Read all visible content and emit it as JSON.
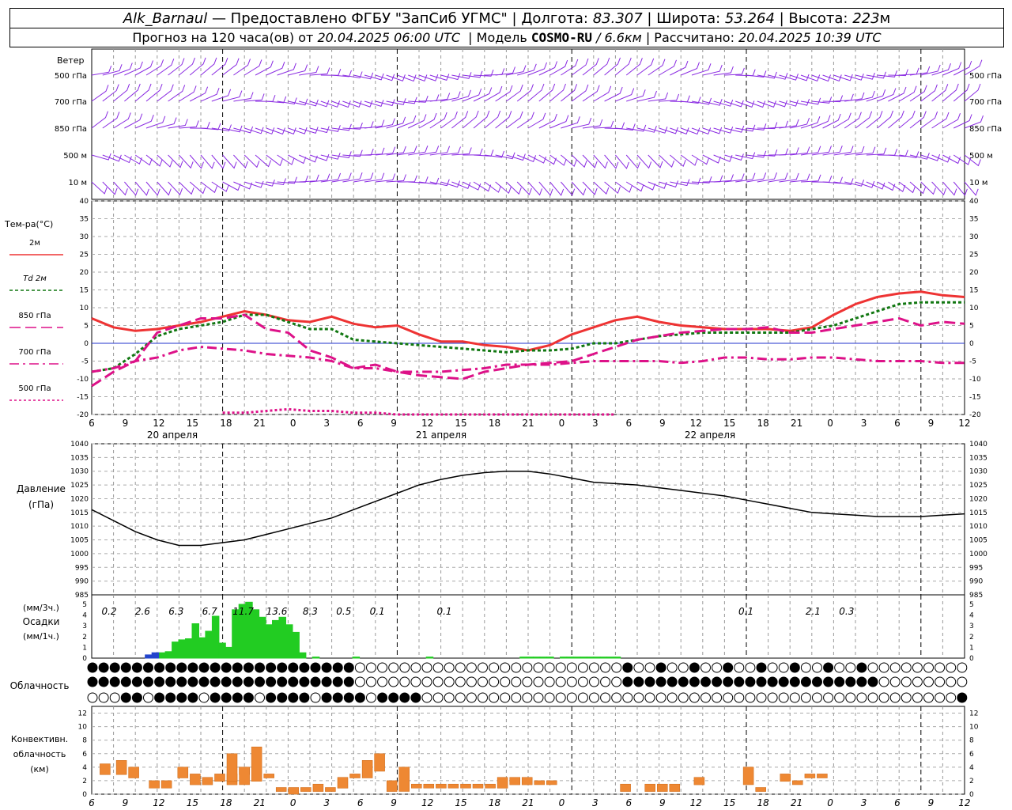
{
  "header": {
    "station": "Alk_Barnaul",
    "provided_by": "— Предоставлено ФГБУ \"ЗапСиб УГМС\" |",
    "lon_label": "Долгота:",
    "lon_value": "83.307",
    "lat_label": "| Широта:",
    "lat_value": "53.264",
    "alt_label": "| Высота:",
    "alt_value": "223",
    "alt_unit": "м",
    "forecast_label": "Прогноз на 120 часа(ов) от",
    "forecast_time": "20.04.2025 06:00 UTC",
    "model_label": "| Модель",
    "model_name": "COSMO-RU",
    "model_res": "/ 6.6км",
    "calc_label": "| Рассчитано:",
    "calc_time": "20.04.2025 10:39 UTC"
  },
  "wind_panel": {
    "title": "Ветер",
    "levels": [
      "500 гПа",
      "700 гПа",
      "850 гПа",
      "500 м",
      "10 м"
    ],
    "color": "#8a2be2"
  },
  "temp_panel": {
    "title": "Тем-ра(°C)",
    "legend": [
      {
        "label": "2м",
        "color": "#ee3333",
        "dash": ""
      },
      {
        "label": "Td  2м",
        "color": "#117711",
        "dash": "4,3"
      },
      {
        "label": "850 гПа",
        "color": "#dd1188",
        "dash": "14,6"
      },
      {
        "label": "700 гПа",
        "color": "#dd1188",
        "dash": "12,5,3,5"
      },
      {
        "label": "500 гПа",
        "color": "#dd1188",
        "dash": "3,3"
      }
    ]
  },
  "time_axis": {
    "hour_labels": [
      "6",
      "9",
      "12",
      "15",
      "18",
      "21",
      "0",
      "3",
      "6",
      "9",
      "12",
      "15",
      "18",
      "21",
      "0",
      "3",
      "6",
      "9",
      "12",
      "15",
      "18",
      "21",
      "0",
      "3",
      "6",
      "9",
      "12"
    ],
    "day_labels": [
      "20 апреля",
      "21 апреля",
      "22 апреля"
    ]
  },
  "pressure_panel": {
    "title_1": "Давление",
    "title_2": "(гПа)"
  },
  "precip_panel": {
    "title_1": "(мм/3ч.)",
    "title_2": "Осадки",
    "title_3": "(мм/1ч.)",
    "totals_3h": [
      "0.2",
      "2.6",
      "6.3",
      "6.7",
      "11.7",
      "13.6",
      "8.3",
      "0.5",
      "0.1",
      "",
      "0.1",
      "",
      "",
      "",
      "",
      "",
      "",
      "",
      "",
      "0.1",
      "",
      "2.1",
      "0.3"
    ]
  },
  "cloud_panel": {
    "title": "Облачность"
  },
  "conv_panel": {
    "title_1": "Конвективн.",
    "title_2": "облачность",
    "title_3": "(км)"
  },
  "chart_data": [
    {
      "type": "line",
      "title": "Тем-ра(°C)",
      "x_unit": "hours since 20.04.2025 06:00 UTC",
      "ylim": [
        -20,
        40
      ],
      "yticks": [
        -20,
        -15,
        -10,
        -5,
        0,
        5,
        10,
        15,
        20,
        25,
        30,
        35,
        40
      ],
      "series": [
        {
          "name": "2м",
          "x": [
            0,
            3,
            6,
            9,
            12,
            15,
            18,
            21,
            24,
            27,
            30,
            33,
            36,
            39,
            42,
            45,
            48,
            51,
            54,
            57,
            60,
            63,
            66,
            69,
            72,
            75,
            78,
            81,
            84,
            87,
            90,
            93,
            96,
            99,
            102,
            105,
            108,
            111,
            114,
            117,
            120
          ],
          "values": [
            7,
            4.5,
            3.5,
            4,
            5,
            6,
            7.5,
            9,
            8,
            6.5,
            6,
            7.5,
            5.5,
            4.5,
            5,
            2.5,
            0.5,
            0.5,
            -0.5,
            -1,
            -2,
            -0.5,
            2.5,
            4.5,
            6.5,
            7.5,
            6,
            5,
            4.5,
            4,
            4,
            4,
            3.5,
            4.5,
            8,
            11,
            13,
            14,
            14.5,
            13.5,
            13
          ]
        },
        {
          "name": "Td  2м",
          "x": [
            0,
            3,
            6,
            9,
            12,
            15,
            18,
            21,
            24,
            27,
            30,
            33,
            36,
            39,
            42,
            45,
            48,
            51,
            54,
            57,
            60,
            63,
            66,
            69,
            72,
            75,
            78,
            81,
            84,
            87,
            90,
            93,
            96,
            99,
            102,
            105,
            108,
            111,
            114,
            117,
            120
          ],
          "values": [
            -8,
            -7,
            -3,
            2,
            4,
            5,
            6,
            8,
            8,
            6,
            4,
            4,
            1,
            0.5,
            0,
            -0.5,
            -1,
            -1.5,
            -2,
            -2.5,
            -2,
            -2,
            -1.5,
            0,
            0,
            1,
            2,
            2.5,
            3,
            3,
            3,
            3,
            3,
            4,
            5,
            7,
            9,
            11,
            11.5,
            11.5,
            11.5
          ]
        },
        {
          "name": "850 гПа",
          "x": [
            0,
            3,
            6,
            9,
            12,
            15,
            18,
            21,
            24,
            27,
            30,
            33,
            36,
            39,
            42,
            45,
            48,
            51,
            54,
            57,
            60,
            63,
            66,
            69,
            72,
            75,
            78,
            81,
            84,
            87,
            90,
            93,
            96,
            99,
            102,
            105,
            108,
            111,
            114,
            117,
            120
          ],
          "values": [
            -12,
            -8,
            -5,
            3,
            5,
            7,
            7,
            8,
            4,
            3,
            -2,
            -4,
            -7,
            -6,
            -8,
            -9,
            -9.5,
            -10,
            -8,
            -7,
            -6,
            -5.5,
            -5,
            -3,
            -1,
            1,
            2,
            3,
            3.5,
            4,
            4,
            4.5,
            3,
            3,
            4,
            5,
            6,
            7,
            5,
            6,
            5.5
          ]
        },
        {
          "name": "700 гПа",
          "x": [
            0,
            3,
            6,
            9,
            12,
            15,
            18,
            21,
            24,
            27,
            30,
            33,
            36,
            39,
            42,
            45,
            48,
            51,
            54,
            57,
            60,
            63,
            66,
            69,
            72,
            75,
            78,
            81,
            84,
            87,
            90,
            93,
            96,
            99,
            102,
            105,
            108,
            111,
            114,
            117,
            120
          ],
          "values": [
            -8,
            -7,
            -5,
            -4,
            -2,
            -1,
            -1.5,
            -2,
            -3,
            -3.5,
            -4,
            -5,
            -7,
            -7,
            -8,
            -8,
            -8,
            -7.5,
            -7,
            -6,
            -6,
            -6,
            -5.5,
            -5,
            -5,
            -5,
            -5,
            -5.5,
            -5,
            -4,
            -4,
            -4.5,
            -4.5,
            -4,
            -4,
            -4.5,
            -5,
            -5,
            -5,
            -5.5,
            -5.5
          ]
        },
        {
          "name": "500 гПа",
          "x": [
            18,
            21,
            24,
            27,
            30,
            33,
            36,
            39,
            42,
            45,
            48,
            51,
            54,
            57,
            60,
            63,
            66,
            69,
            72
          ],
          "values": [
            -19.5,
            -19.5,
            -19,
            -18.5,
            -19,
            -19,
            -19.5,
            -19.5,
            -20,
            -20,
            -20,
            -20,
            -20,
            -20,
            -20,
            -20,
            -20,
            -20,
            -20
          ]
        }
      ]
    },
    {
      "type": "line",
      "title": "Давление",
      "x_unit": "hours since 20.04.2025 06:00 UTC",
      "ylim": [
        985,
        1040
      ],
      "yticks": [
        985,
        990,
        995,
        1000,
        1005,
        1010,
        1015,
        1020,
        1025,
        1030,
        1035,
        1040
      ],
      "series": [
        {
          "name": "",
          "x": [
            0,
            3,
            6,
            9,
            12,
            15,
            18,
            21,
            24,
            27,
            30,
            33,
            36,
            39,
            42,
            45,
            48,
            51,
            54,
            57,
            60,
            63,
            66,
            69,
            72,
            75,
            78,
            81,
            84,
            87,
            90,
            93,
            96,
            99,
            102,
            105,
            108,
            111,
            114,
            117,
            120
          ],
          "values": [
            1016,
            1012,
            1008,
            1005,
            1003,
            1003,
            1004,
            1005,
            1007,
            1009,
            1011,
            1013,
            1016,
            1019,
            1022,
            1025,
            1027,
            1028.5,
            1029.5,
            1030,
            1030,
            1029,
            1027.5,
            1026,
            1025.5,
            1025,
            1024,
            1023,
            1022,
            1021,
            1019.5,
            1018,
            1016.5,
            1015,
            1014.5,
            1014,
            1013.5,
            1013.5,
            1013.5,
            1014,
            1014.5
          ]
        }
      ]
    },
    {
      "type": "bar",
      "title": "Осадки",
      "x_unit": "hours since 20.04.2025 06:00 UTC (hourly)",
      "ylim": [
        0,
        5
      ],
      "yticks": [
        0,
        1,
        2,
        3,
        4,
        5
      ],
      "series": [
        {
          "name": "(мм/1ч.)",
          "color": "#22cc22",
          "x": [
            10,
            11,
            12,
            13,
            14,
            15,
            16,
            17,
            18,
            19,
            20,
            21,
            22,
            23,
            24,
            25,
            26,
            27,
            28,
            29,
            30,
            31,
            33,
            39,
            50,
            64,
            65,
            66,
            67,
            68,
            70,
            71,
            72,
            73,
            74,
            75,
            76,
            77,
            78
          ],
          "values": [
            0.5,
            0.6,
            1.5,
            1.7,
            1.8,
            3.2,
            1.9,
            2.5,
            3.9,
            1.4,
            1.0,
            4.5,
            5.0,
            5.2,
            4.5,
            3.8,
            3.1,
            3.5,
            3.8,
            3.1,
            2.4,
            0.5,
            0.1,
            0.1,
            0.1,
            0.1,
            0.1,
            0.1,
            0.1,
            0.1,
            0.1,
            0.1,
            0.1,
            0.1,
            0.1,
            0.1,
            0.1,
            0.1,
            0.1
          ]
        },
        {
          "name": "",
          "color": "#2244cc",
          "x": [
            8,
            9
          ],
          "values": [
            0.3,
            0.5
          ]
        }
      ]
    },
    {
      "type": "bar",
      "title": "Конвективн. облачность",
      "x_unit": "hours since 20.04.2025 06:00 UTC (hourly)",
      "ylim": [
        0,
        13
      ],
      "yticks": [
        0,
        2,
        4,
        6,
        8,
        10,
        12
      ],
      "series": [
        {
          "name": "",
          "color": "#ee8833",
          "bars": [
            [
              2,
              3.5,
              4.5
            ],
            [
              6,
              3.5,
              5
            ],
            [
              9,
              3,
              4
            ],
            [
              14,
              1.5,
              2
            ],
            [
              17,
              1.5,
              2
            ],
            [
              21,
              3,
              4
            ],
            [
              24,
              2,
              3
            ],
            [
              27,
              2,
              2.5
            ],
            [
              30,
              2.5,
              3
            ],
            [
              33,
              2,
              3
            ],
            [
              33,
              2.5,
              6
            ],
            [
              36,
              3.5,
              4
            ],
            [
              36,
              2,
              4
            ],
            [
              39,
              2.5,
              7
            ],
            [
              42,
              3,
              3
            ],
            [
              45,
              1,
              1
            ],
            [
              48,
              0.5,
              1
            ],
            [
              51,
              1,
              1
            ],
            [
              54,
              1,
              1.5
            ],
            [
              57,
              1,
              1
            ],
            [
              60,
              1.5,
              2.5
            ],
            [
              63,
              3,
              3
            ],
            [
              66,
              3,
              5
            ],
            [
              69,
              4,
              6
            ],
            [
              72,
              1,
              2
            ],
            [
              75,
              1,
              4
            ],
            [
              78,
              1.5,
              1.5
            ],
            [
              81,
              1.5,
              1.5
            ],
            [
              84,
              1.5,
              1.5
            ],
            [
              87,
              1.5,
              1.5
            ],
            [
              90,
              1.5,
              1.5
            ],
            [
              93,
              1.5,
              1.5
            ],
            [
              96,
              1.5,
              1.5
            ],
            [
              99,
              1.5,
              2.5
            ],
            [
              102,
              2,
              2.5
            ],
            [
              105,
              2,
              2.5
            ],
            [
              108,
              2,
              2
            ],
            [
              111,
              2,
              2
            ],
            [
              129,
              1,
              1.5
            ],
            [
              135,
              1,
              1.5
            ],
            [
              138,
              1,
              1.5
            ],
            [
              141,
              1,
              1.5
            ],
            [
              147,
              2,
              2.5
            ],
            [
              150,
              0,
              0
            ],
            [
              159,
              2,
              4
            ],
            [
              162,
              1,
              1
            ],
            [
              168,
              2.5,
              3
            ],
            [
              171,
              2,
              2
            ],
            [
              174,
              3,
              3
            ],
            [
              177,
              3,
              3
            ],
            [
              213,
              0,
              0
            ]
          ]
        }
      ]
    }
  ]
}
